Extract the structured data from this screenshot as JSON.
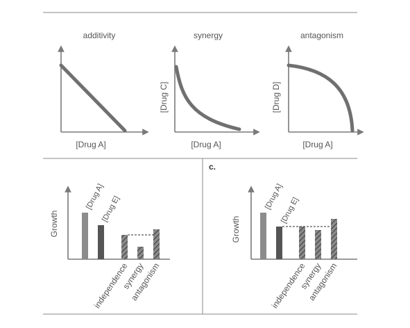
{
  "top_panels": {
    "additivity": {
      "title": "additivity",
      "xlabel": "[Drug A]"
    },
    "synergy": {
      "title": "synergy",
      "xlabel": "[Drug A]",
      "ylabel": "[Drug C]"
    },
    "antagonism": {
      "title": "antagonism",
      "xlabel": "[Drug A]",
      "ylabel": "[Drug D]"
    }
  },
  "bottom_left": {
    "ylabel": "Growth",
    "bar_labels": [
      "[Drug A]",
      "[Drug E]"
    ],
    "categories": [
      "independence",
      "synergy",
      "antagonism"
    ]
  },
  "bottom_right": {
    "panel_label": "c.",
    "ylabel": "Growth",
    "bar_labels": [
      "[Drug A]",
      "[Drug E]"
    ],
    "categories": [
      "independence",
      "synergy",
      "antagonism"
    ]
  },
  "colors": {
    "drug_a_bar": "#8c8c8c",
    "drug_e_bar": "#555555",
    "hatched_bar": "#6e6e6e",
    "curve": "#707070"
  }
}
